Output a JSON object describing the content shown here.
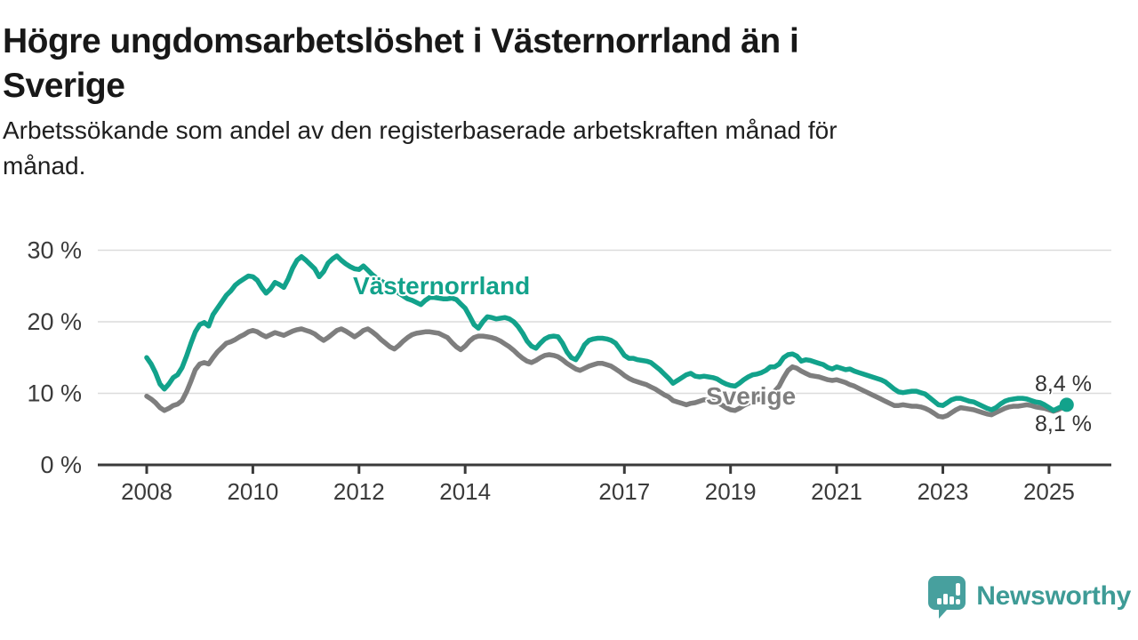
{
  "header": {
    "title": {
      "lines": [
        "Högre ungdomsarbetslöshet i Västernorrland än i",
        "Sverige"
      ]
    },
    "subtitle": {
      "lines": [
        "Arbetssökande som andel av den registerbaserade arbetskraften månad för",
        "månad."
      ]
    }
  },
  "branding": {
    "logo_text": "Newsworthy",
    "wordmark_color": "#3e9b96",
    "icon_color": "#47a09e"
  },
  "chart_data": {
    "type": "line",
    "title": "Högre ungdomsarbetslöshet i Västernorrland än i Sverige",
    "subtitle": "Arbetssökande som andel av den registerbaserade arbetskraften månad för månad.",
    "unit": "%",
    "x_start_year": 2008,
    "x_step_months": 1,
    "x_end_year_approx": 2025.33,
    "x_ticks": [
      2008,
      2010,
      2012,
      2014,
      2017,
      2019,
      2021,
      2023,
      2025
    ],
    "y_ticks": [
      {
        "value": 30,
        "label": "30 %"
      },
      {
        "value": 20,
        "label": "20 %"
      },
      {
        "value": 10,
        "label": "10 %"
      },
      {
        "value": 0,
        "label": "0 %"
      }
    ],
    "ylim": [
      0,
      31.5
    ],
    "grid": "horizontal",
    "legend_position": "inline-labels",
    "axis_color": "#3a3a3a",
    "grid_color": "#dcdcdc",
    "tick_label_color": "#3a3a3a",
    "series": [
      {
        "name": "Västernorrland",
        "color": "#12a28b",
        "end_label": "8,4 %",
        "end_value": 8.4,
        "end_dot": true,
        "values": [
          15.0,
          14.1,
          12.9,
          11.3,
          10.6,
          11.3,
          12.2,
          12.6,
          13.6,
          15.2,
          17.0,
          18.6,
          19.6,
          19.9,
          19.4,
          21.0,
          21.9,
          22.8,
          23.7,
          24.3,
          25.1,
          25.6,
          26.0,
          26.4,
          26.3,
          25.8,
          24.8,
          24.0,
          24.6,
          25.5,
          25.2,
          24.8,
          26.0,
          27.5,
          28.6,
          29.1,
          28.6,
          28.0,
          27.4,
          26.3,
          27.0,
          28.2,
          28.8,
          29.2,
          28.6,
          28.1,
          27.7,
          27.4,
          27.3,
          27.8,
          27.2,
          26.6,
          26.1,
          25.7,
          25.3,
          24.9,
          24.5,
          24.0,
          23.6,
          23.2,
          23.0,
          22.7,
          22.4,
          23.0,
          23.4,
          23.4,
          23.3,
          23.2,
          23.2,
          23.3,
          23.1,
          22.5,
          21.9,
          20.8,
          19.6,
          19.1,
          20.0,
          20.7,
          20.6,
          20.4,
          20.5,
          20.6,
          20.4,
          20.0,
          19.3,
          18.4,
          17.3,
          16.6,
          16.3,
          17.0,
          17.6,
          17.9,
          18.0,
          17.9,
          17.0,
          15.8,
          15.0,
          14.7,
          15.6,
          16.8,
          17.4,
          17.6,
          17.7,
          17.7,
          17.6,
          17.4,
          17.0,
          16.2,
          15.3,
          14.9,
          14.9,
          14.7,
          14.6,
          14.5,
          14.3,
          13.8,
          13.3,
          12.7,
          12.1,
          11.4,
          11.8,
          12.2,
          12.6,
          12.8,
          12.4,
          12.3,
          12.4,
          12.3,
          12.2,
          12.0,
          11.6,
          11.3,
          11.1,
          11.0,
          11.4,
          11.9,
          12.3,
          12.6,
          12.7,
          12.9,
          13.2,
          13.7,
          13.7,
          14.1,
          15.0,
          15.4,
          15.5,
          15.2,
          14.5,
          14.7,
          14.6,
          14.4,
          14.2,
          14.0,
          13.6,
          13.4,
          13.7,
          13.5,
          13.3,
          13.4,
          13.1,
          12.9,
          12.7,
          12.5,
          12.3,
          12.1,
          11.9,
          11.6,
          11.1,
          10.6,
          10.2,
          10.1,
          10.2,
          10.3,
          10.3,
          10.1,
          9.9,
          9.4,
          8.9,
          8.4,
          8.3,
          8.7,
          9.1,
          9.3,
          9.3,
          9.1,
          8.9,
          8.8,
          8.5,
          8.2,
          7.9,
          7.7,
          8.0,
          8.5,
          8.9,
          9.1,
          9.2,
          9.3,
          9.3,
          9.2,
          9.0,
          8.8,
          8.7,
          8.4,
          8.0,
          7.6,
          7.9,
          8.2,
          8.4
        ]
      },
      {
        "name": "Sverige",
        "color": "#7e7e7e",
        "end_label": "8,1 %",
        "end_value": 8.1,
        "end_dot": false,
        "values": [
          9.6,
          9.2,
          8.7,
          8.0,
          7.6,
          7.9,
          8.3,
          8.5,
          9.0,
          10.2,
          11.7,
          13.3,
          14.1,
          14.3,
          14.1,
          15.0,
          15.8,
          16.4,
          17.0,
          17.2,
          17.5,
          17.9,
          18.2,
          18.6,
          18.8,
          18.6,
          18.2,
          17.9,
          18.2,
          18.5,
          18.3,
          18.1,
          18.4,
          18.7,
          18.9,
          19.0,
          18.8,
          18.6,
          18.3,
          17.8,
          17.4,
          17.8,
          18.3,
          18.8,
          19.0,
          18.7,
          18.3,
          17.9,
          18.3,
          18.8,
          19.0,
          18.6,
          18.1,
          17.5,
          17.0,
          16.5,
          16.2,
          16.7,
          17.3,
          17.8,
          18.2,
          18.4,
          18.5,
          18.6,
          18.6,
          18.5,
          18.4,
          18.1,
          17.8,
          17.1,
          16.5,
          16.1,
          16.6,
          17.3,
          17.8,
          18.0,
          18.0,
          17.9,
          17.8,
          17.6,
          17.3,
          16.9,
          16.5,
          16.0,
          15.4,
          14.9,
          14.5,
          14.3,
          14.6,
          15.0,
          15.3,
          15.4,
          15.3,
          15.1,
          14.7,
          14.2,
          13.8,
          13.4,
          13.2,
          13.5,
          13.8,
          14.0,
          14.2,
          14.2,
          14.0,
          13.8,
          13.4,
          13.0,
          12.5,
          12.1,
          11.8,
          11.6,
          11.4,
          11.2,
          10.9,
          10.6,
          10.2,
          9.8,
          9.5,
          9.0,
          8.8,
          8.6,
          8.4,
          8.6,
          8.7,
          8.9,
          9.1,
          9.0,
          8.9,
          8.7,
          8.4,
          8.0,
          7.7,
          7.6,
          7.9,
          8.3,
          8.6,
          8.9,
          9.1,
          9.2,
          9.4,
          9.8,
          10.3,
          11.0,
          12.2,
          13.2,
          13.7,
          13.5,
          13.1,
          12.8,
          12.5,
          12.4,
          12.3,
          12.1,
          11.9,
          11.8,
          11.9,
          11.7,
          11.5,
          11.2,
          11.0,
          10.7,
          10.4,
          10.1,
          9.8,
          9.5,
          9.2,
          8.9,
          8.6,
          8.3,
          8.3,
          8.4,
          8.3,
          8.2,
          8.2,
          8.1,
          7.9,
          7.6,
          7.2,
          6.8,
          6.7,
          6.9,
          7.3,
          7.7,
          8.0,
          7.9,
          7.8,
          7.7,
          7.5,
          7.3,
          7.1,
          7.0,
          7.3,
          7.6,
          7.9,
          8.1,
          8.2,
          8.2,
          8.3,
          8.4,
          8.3,
          8.1,
          8.0,
          7.9,
          7.7,
          7.5,
          7.7,
          8.0,
          8.1
        ]
      }
    ]
  }
}
